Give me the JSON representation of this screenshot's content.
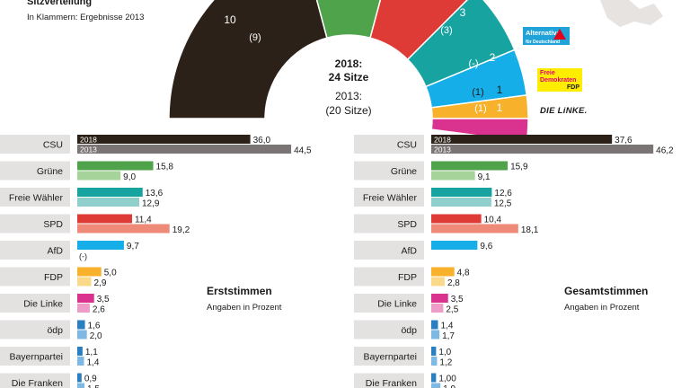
{
  "header": {
    "title": "Sitzverteilung",
    "subtitle": "In Klammern: Ergebnisse 2013"
  },
  "seats": {
    "center_line1": "2018:",
    "center_line2": "24 Sitze",
    "center_line3": "2013:",
    "center_line4": "(20 Sitze)",
    "segments": [
      {
        "party": "CSU",
        "seats_2018": 10,
        "seats_2013": "(9)",
        "color": "#2b2118"
      },
      {
        "party": "Grüne",
        "seats_2018": null,
        "seats_2013": null,
        "color": "#4fa34a"
      },
      {
        "party": "SPD",
        "seats_2018": null,
        "seats_2013": null,
        "color": "#df3b36"
      },
      {
        "party": "Freie Wähler",
        "seats_2018": 3,
        "seats_2013": "(3)",
        "color": "#17a3a0"
      },
      {
        "party": "AfD",
        "seats_2018": 2,
        "seats_2013": "(-)",
        "color": "#16aee8"
      },
      {
        "party": "FDP",
        "seats_2018": 1,
        "seats_2013": "(1)",
        "color": "#f7b12a"
      },
      {
        "party": "Die Linke",
        "seats_2018": 1,
        "seats_2013": "(1)",
        "color": "#d9338f"
      }
    ]
  },
  "logos": {
    "afd_line1": "Alternative",
    "afd_line2": "für Deutschland",
    "fdp_line1": "Freie",
    "fdp_line2": "Demokraten",
    "fdp_line3": "FDP",
    "linke": "DIE LiNKE."
  },
  "chart_data": [
    {
      "type": "bar",
      "title": "Erststimmen",
      "subtitle": "Angaben in Prozent",
      "categories": [
        "CSU",
        "Grüne",
        "Freie Wähler",
        "SPD",
        "AfD",
        "FDP",
        "Die Linke",
        "ödp",
        "Bayernpartei",
        "Die Franken"
      ],
      "series": [
        {
          "name": "2018",
          "values": [
            36.0,
            15.8,
            13.6,
            11.4,
            9.7,
            5.0,
            3.5,
            1.6,
            1.1,
            0.9
          ]
        },
        {
          "name": "2013",
          "values": [
            44.5,
            9.0,
            12.9,
            19.2,
            null,
            2.9,
            2.6,
            2.0,
            1.4,
            1.5
          ]
        }
      ],
      "labels_2018": [
        "36,0",
        "15,8",
        "13,6",
        "11,4",
        "9,7",
        "5,0",
        "3,5",
        "1,6",
        "1,1",
        "0,9"
      ],
      "labels_2013": [
        "44,5",
        "9,0",
        "12,9",
        "19,2",
        "(-)",
        "2,9",
        "2,6",
        "2,0",
        "1,4",
        "1,5"
      ],
      "colors_2018": [
        "#2b2118",
        "#4fa34a",
        "#17a3a0",
        "#df3b36",
        "#16aee8",
        "#f7b12a",
        "#d9338f",
        "#2a7fc0",
        "#2a7fc0",
        "#2a7fc0"
      ],
      "colors_2013": [
        "#7a7574",
        "#a6d39a",
        "#8fd0cd",
        "#ef8a78",
        "#9bd7f3",
        "#fbd98a",
        "#ee9cc8",
        "#7fb8e3",
        "#7fb8e3",
        "#7fb8e3"
      ],
      "xlim": [
        0,
        50
      ]
    },
    {
      "type": "bar",
      "title": "Gesamtstimmen",
      "subtitle": "Angaben in Prozent",
      "categories": [
        "CSU",
        "Grüne",
        "Freie Wähler",
        "SPD",
        "AfD",
        "FDP",
        "Die Linke",
        "ödp",
        "Bayernpartei",
        "Die Franken"
      ],
      "series": [
        {
          "name": "2018",
          "values": [
            37.6,
            15.9,
            12.6,
            10.4,
            9.6,
            4.8,
            3.5,
            1.4,
            1.0,
            1.0
          ]
        },
        {
          "name": "2013",
          "values": [
            46.2,
            9.1,
            12.5,
            18.1,
            null,
            2.8,
            2.5,
            1.7,
            1.2,
            1.9
          ]
        }
      ],
      "labels_2018": [
        "37,6",
        "15,9",
        "12,6",
        "10,4",
        "9,6",
        "4,8",
        "3,5",
        "1,4",
        "1,0",
        "1,00"
      ],
      "labels_2013": [
        "46,2",
        "9,1",
        "12,5",
        "18,1",
        "",
        "2,8",
        "2,5",
        "1,7",
        "1,2",
        "1,9"
      ],
      "colors_2018": [
        "#2b2118",
        "#4fa34a",
        "#17a3a0",
        "#df3b36",
        "#16aee8",
        "#f7b12a",
        "#d9338f",
        "#2a7fc0",
        "#2a7fc0",
        "#2a7fc0"
      ],
      "colors_2013": [
        "#7a7574",
        "#a6d39a",
        "#8fd0cd",
        "#ef8a78",
        "#9bd7f3",
        "#fbd98a",
        "#ee9cc8",
        "#7fb8e3",
        "#7fb8e3",
        "#7fb8e3"
      ],
      "xlim": [
        0,
        50
      ]
    }
  ]
}
